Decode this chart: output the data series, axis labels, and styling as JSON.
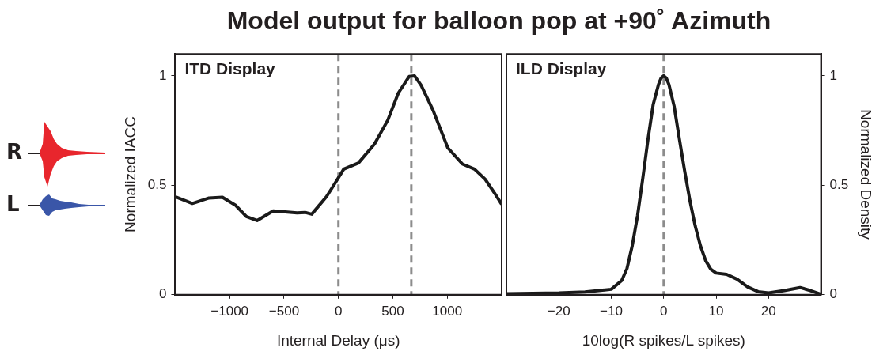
{
  "chart_data": [
    {
      "type": "line",
      "title": "Model output for balloon pop at +90˚ Azimuth",
      "xlabel": "Internal Delay (μs)",
      "ylabel": "Normalized IACC",
      "annotations": [
        "ITD Display",
        "R",
        "L"
      ],
      "legend": false,
      "marker": "none",
      "line_style": "solid",
      "xlim": [
        -1500,
        1500
      ],
      "xticks": [
        {
          "value": -1000,
          "label": "−1000"
        },
        {
          "value": -500,
          "label": "−500"
        },
        0,
        500,
        1000
      ],
      "ylim": [
        0,
        1.1
      ],
      "yticks": [
        0,
        0.5,
        1
      ],
      "ref_lines": [
        {
          "axis": "x",
          "value": 0,
          "label": null,
          "color": "#8c8c8c",
          "line_style": "dashed"
        },
        {
          "axis": "x",
          "value": 670,
          "label": null,
          "color": "#8c8c8c",
          "line_style": "dashed"
        }
      ],
      "series": [
        {
          "color": "#1a1a1a",
          "x": [
            -1500,
            -1343,
            -1189,
            -1066,
            -944,
            -846,
            -748,
            -600,
            -380,
            -306,
            -245,
            -110,
            -37,
            49,
            184,
            331,
            453,
            551,
            650,
            699,
            760,
            870,
            1005,
            1140,
            1250,
            1348,
            1434,
            1495
          ],
          "values": [
            0.448,
            0.417,
            0.442,
            0.445,
            0.408,
            0.357,
            0.339,
            0.383,
            0.374,
            0.376,
            0.368,
            0.448,
            0.505,
            0.574,
            0.602,
            0.688,
            0.797,
            0.922,
            0.997,
            1.0,
            0.957,
            0.842,
            0.671,
            0.597,
            0.574,
            0.528,
            0.465,
            0.417
          ]
        }
      ]
    },
    {
      "type": "line",
      "xlabel": "10log(R spikes/L spikes)",
      "y2label": "Normalized Density",
      "annotations": [
        "ILD Display"
      ],
      "legend": false,
      "marker": "none",
      "line_style": "solid",
      "xlim": [
        -30,
        30
      ],
      "xticks": [
        {
          "value": -20,
          "label": "−20"
        },
        {
          "value": -10,
          "label": "−10"
        },
        0,
        10,
        20
      ],
      "y2lim": [
        0,
        1.1
      ],
      "y2ticks": [
        0,
        0.5,
        1
      ],
      "ref_lines": [
        {
          "axis": "x",
          "value": 0,
          "label": null,
          "color": "#8c8c8c",
          "line_style": "dashed"
        }
      ],
      "series": [
        {
          "color": "#1a1a1a",
          "axis": "y2",
          "x": [
            -30,
            -20,
            -15,
            -10,
            -8,
            -7,
            -6,
            -5,
            -4,
            -3,
            -2,
            -1,
            -0.5,
            0,
            0.5,
            1,
            2,
            3,
            4,
            5,
            6,
            7,
            8,
            9,
            10,
            12,
            14,
            16,
            18,
            20,
            23,
            26,
            28,
            30
          ],
          "values": [
            0.005,
            0.008,
            0.013,
            0.025,
            0.065,
            0.12,
            0.224,
            0.36,
            0.53,
            0.71,
            0.87,
            0.96,
            0.99,
            1.0,
            0.99,
            0.96,
            0.86,
            0.71,
            0.565,
            0.43,
            0.315,
            0.224,
            0.156,
            0.116,
            0.099,
            0.093,
            0.071,
            0.036,
            0.014,
            0.008,
            0.019,
            0.033,
            0.019,
            0.002
          ]
        }
      ]
    }
  ]
}
